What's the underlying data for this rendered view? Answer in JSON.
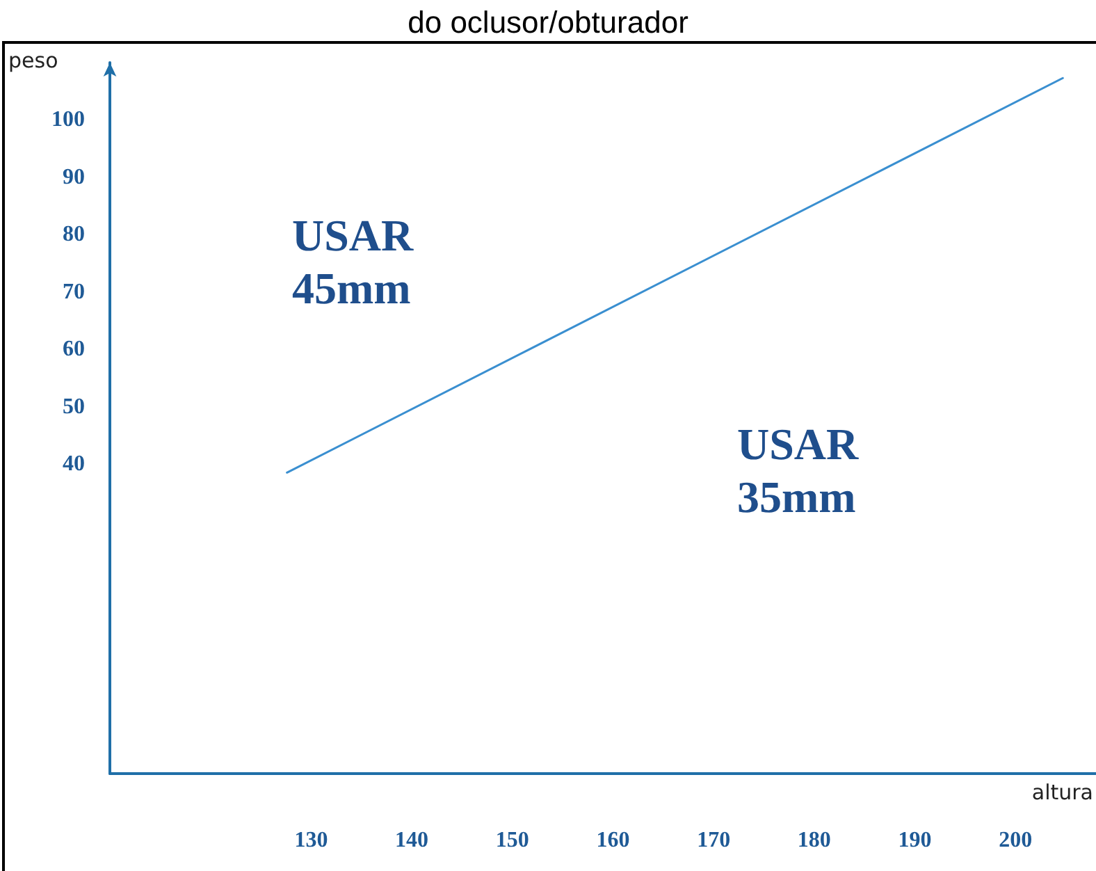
{
  "chart_data": {
    "type": "line",
    "title": "do oclusor/obturador",
    "xlabel": "altura",
    "ylabel": "peso",
    "x": [
      127.6,
      204.7
    ],
    "series": [
      {
        "color": "#3a8fd0",
        "values": [
          38.5,
          107.3
        ]
      }
    ],
    "xlim": [
      110,
      208
    ],
    "xticks": [
      130,
      140,
      150,
      160,
      170,
      180,
      190,
      200
    ],
    "ylim": [
      -14,
      110
    ],
    "yticks": [
      40,
      50,
      60,
      70,
      80,
      90,
      100
    ],
    "annotations": [
      "USAR\n45mm",
      "USAR\n35mm"
    ],
    "marker": "none",
    "line_style": "solid"
  }
}
